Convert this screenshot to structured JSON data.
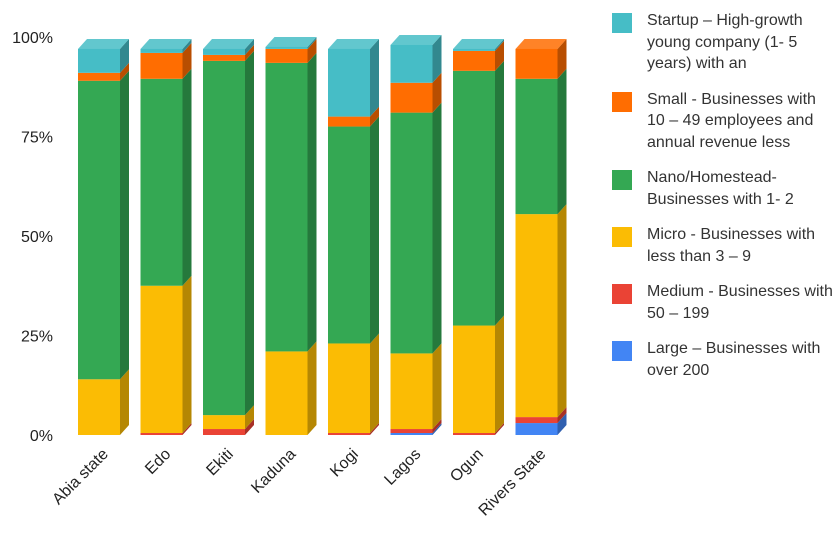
{
  "chart_data": {
    "type": "bar",
    "stacked": true,
    "percent": true,
    "style": "3d",
    "categories": [
      "Abia state",
      "Edo",
      "Ekiti",
      "Kaduna",
      "Kogi",
      "Lagos",
      "Ogun",
      "Rivers State"
    ],
    "y_ticks": [
      "0%",
      "25%",
      "50%",
      "75%",
      "100%"
    ],
    "ylim": [
      0,
      100
    ],
    "legend_position": "right",
    "series": [
      {
        "name": "Large – Businesses with over 200",
        "color": "#4285f4",
        "values": [
          0,
          0,
          0,
          0,
          0,
          0.5,
          0,
          3
        ]
      },
      {
        "name": "Medium - Businesses with 50 – 199",
        "color": "#ea4335",
        "values": [
          0,
          0.5,
          1.5,
          0,
          0.5,
          1,
          0.5,
          1.5
        ]
      },
      {
        "name": "Micro - Businesses with less than 3 – 9",
        "color": "#fbbc04",
        "values": [
          14,
          37,
          3.5,
          21,
          22.5,
          19,
          27,
          51
        ]
      },
      {
        "name": "Nano/Homestead-Businesses with 1- 2",
        "color": "#34a853",
        "values": [
          75,
          52,
          89,
          72.5,
          54.5,
          60.5,
          64,
          34
        ]
      },
      {
        "name": "Small - Businesses with 10 – 49 employees and annual revenue less",
        "color": "#ff6d01",
        "values": [
          2,
          6.5,
          1.5,
          3.5,
          2.5,
          7.5,
          5,
          7.5
        ]
      },
      {
        "name": "Startup – High-growth young company (1- 5 years) with an",
        "color": "#46bdc6",
        "values": [
          6,
          1,
          1.5,
          0.5,
          17,
          9.5,
          0.5,
          0
        ]
      }
    ],
    "legend_order": [
      {
        "label": "Startup – High-growth young company (1- 5 years) with an",
        "color": "#46bdc6"
      },
      {
        "label": "Small - Businesses with 10 – 49 employees and annual revenue less",
        "color": "#ff6d01"
      },
      {
        "label": "Nano/Homestead-Businesses with 1- 2",
        "color": "#34a853"
      },
      {
        "label": "Micro - Businesses with less than 3 – 9",
        "color": "#fbbc04"
      },
      {
        "label": "Medium - Businesses with 50 – 199",
        "color": "#ea4335"
      },
      {
        "label": "Large – Businesses with over 200",
        "color": "#4285f4"
      }
    ]
  }
}
